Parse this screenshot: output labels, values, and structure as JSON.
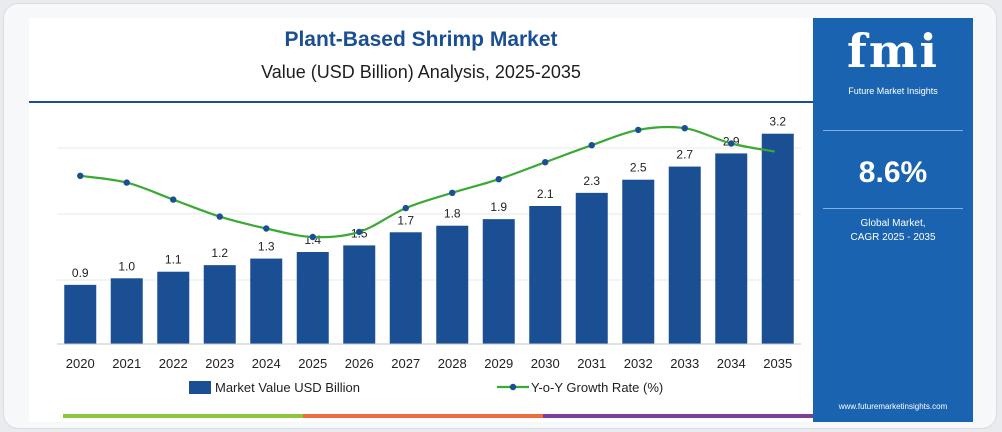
{
  "title": "Plant-Based Shrimp Market",
  "subtitle": "Value (USD Billion) Analysis, 2025-2035",
  "sidebar": {
    "logo_mark": "fmi",
    "logo_text": "Future Market Insights",
    "cagr_value": "8.6%",
    "cagr_label_line1": "Global Market,",
    "cagr_label_line2": "CAGR 2025 - 2035",
    "website": "www.futuremarketinsights.com"
  },
  "colors": {
    "bar": "#1b4f93",
    "line": "#3aaa35",
    "marker": "#1b4f93",
    "sidebar": "#1a63b0",
    "stripe_1": "#8cc63f",
    "stripe_2": "#f26b3a",
    "stripe_3": "#7b3f98"
  },
  "chart_data": {
    "type": "bar",
    "categories": [
      "2020",
      "2021",
      "2022",
      "2023",
      "2024",
      "2025",
      "2026",
      "2027",
      "2028",
      "2029",
      "2030",
      "2031",
      "2032",
      "2033",
      "2034",
      "2035"
    ],
    "series": [
      {
        "name": "Market Value USD Billion",
        "type": "bar",
        "values": [
          0.9,
          1.0,
          1.1,
          1.2,
          1.3,
          1.4,
          1.5,
          1.7,
          1.8,
          1.9,
          2.1,
          2.3,
          2.5,
          2.7,
          2.9,
          3.2
        ],
        "labels": [
          "0.9",
          "1.0",
          "1.1",
          "1.2",
          "1.3",
          "1.4",
          "1.5",
          "1.7",
          "1.8",
          "1.9",
          "2.1",
          "2.3",
          "2.5",
          "2.7",
          "2.9",
          "3.2"
        ]
      },
      {
        "name": "Y-o-Y Growth Rate (%)",
        "type": "line",
        "values": [
          11.6,
          11.2,
          10.2,
          9.2,
          8.5,
          8.0,
          8.3,
          9.7,
          10.6,
          11.4,
          12.4,
          13.4,
          14.3,
          14.4,
          13.5,
          13.0
        ]
      }
    ],
    "ylim": [
      0,
      3.5
    ],
    "legend_position": "bottom",
    "grid": "horizontal"
  }
}
